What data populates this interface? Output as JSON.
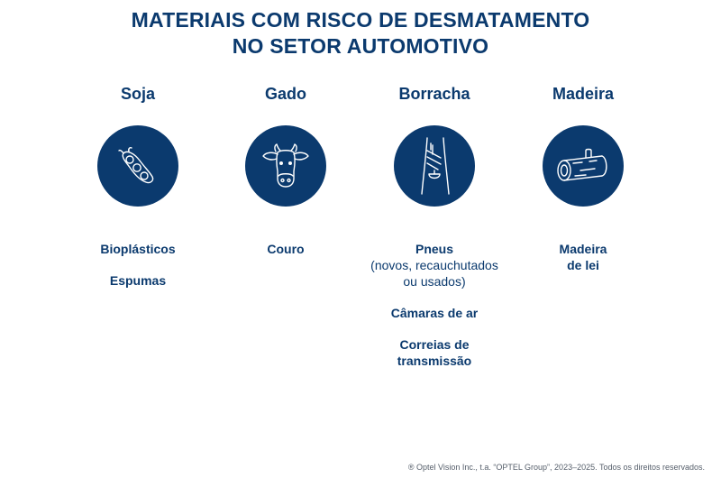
{
  "title": {
    "line1": "MATERIAIS COM RISCO DE DESMATAMENTO",
    "line2": "NO SETOR AUTOMOTIVO"
  },
  "columns": [
    {
      "name": "Soja",
      "icon": "soybean-pod-icon",
      "items": [
        "Bioplásticos",
        "Espumas"
      ]
    },
    {
      "name": "Gado",
      "icon": "cow-head-icon",
      "items": [
        "Couro"
      ]
    },
    {
      "name": "Borracha",
      "icon": "rubber-tree-tap-icon",
      "items": [
        {
          "main": "Pneus",
          "sub1": "(novos, recauchutados",
          "sub2": "ou usados)"
        },
        "Câmaras de ar",
        {
          "line1": "Correias de",
          "line2": "transmissão"
        }
      ]
    },
    {
      "name": "Madeira",
      "icon": "log-icon",
      "items": [
        {
          "line1": "Madeira",
          "line2": "de lei"
        }
      ]
    }
  ],
  "footer": "® Optel Vision Inc., t.a. “OPTEL Group”, 2023–2025. Todos os direitos reservados.",
  "colors": {
    "primary": "#0b3a6e",
    "background": "#ffffff"
  }
}
